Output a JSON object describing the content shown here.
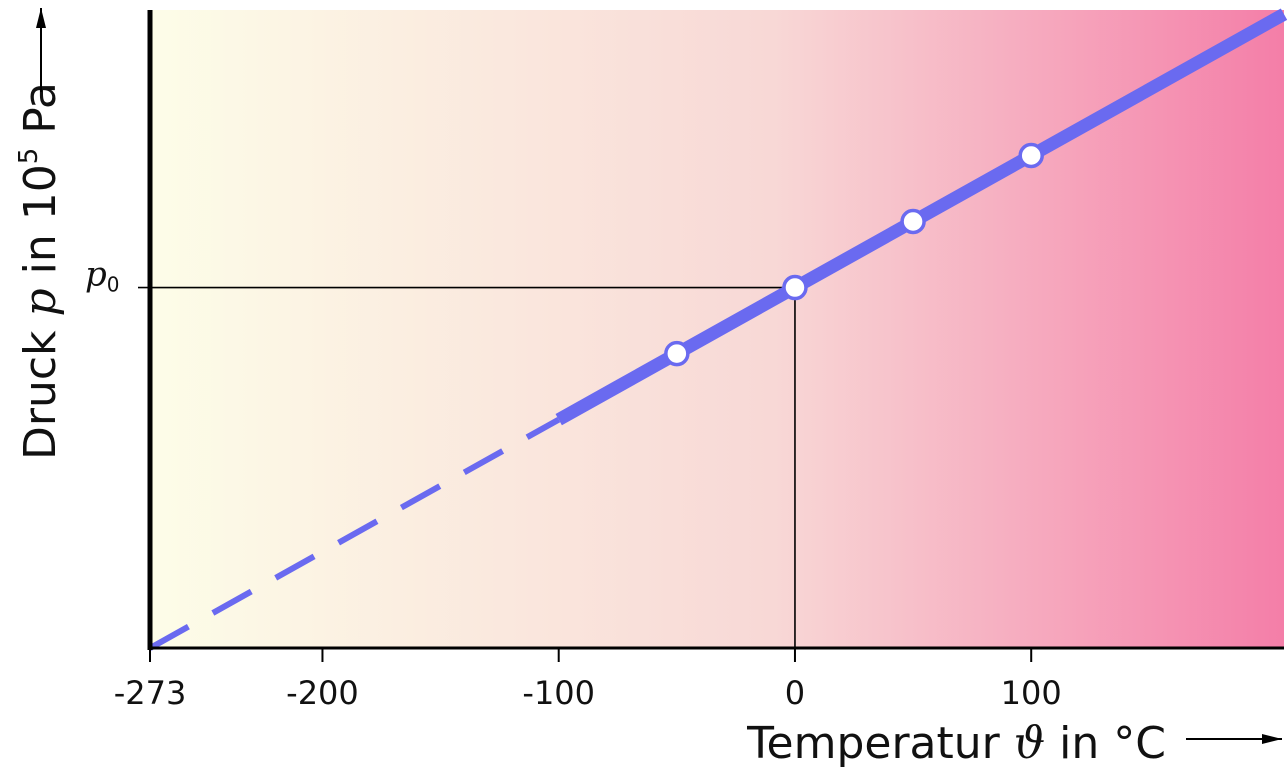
{
  "chart_data": {
    "type": "line",
    "xlabel": {
      "prefix": "Temperatur ",
      "symbol": "ϑ",
      "suffix": " in °C"
    },
    "ylabel": {
      "prefix": "Druck ",
      "symbol": "p",
      "middle": " in 10",
      "exponent": "5",
      "suffix": " Pa"
    },
    "x_ticks": [
      {
        "value": -273,
        "label": "-273"
      },
      {
        "value": -200,
        "label": "-200"
      },
      {
        "value": -100,
        "label": "-100"
      },
      {
        "value": 0,
        "label": "0"
      },
      {
        "value": 100,
        "label": "100"
      }
    ],
    "xlim": [
      -273,
      207
    ],
    "ylim": [
      0,
      1.77
    ],
    "reference": {
      "x": 0,
      "y": 1,
      "label": "p",
      "subscript": "0"
    },
    "series": [
      {
        "x": [
          -50,
          0,
          50,
          100
        ],
        "y": [
          0.8168,
          1.0,
          1.1832,
          1.3663
        ],
        "line": {
          "x_start": -100,
          "x_end": 207,
          "extrapolated_to": -273
        },
        "color": "#6a6af0"
      }
    ],
    "background_gradient": [
      "#fdfde8",
      "#f8d8d6",
      "#f47ea8"
    ],
    "grid": false,
    "legend": null
  }
}
